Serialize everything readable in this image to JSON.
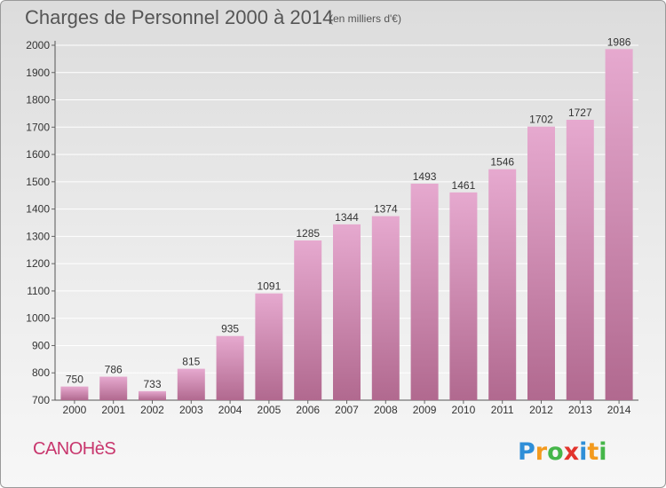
{
  "header": {
    "title": "Charges de Personnel 2000 à 2014",
    "subtitle": "(en milliers d'€)"
  },
  "footer": {
    "commune": "CANOHèS",
    "brand": "Proxiti"
  },
  "colors": {
    "bar_top": "#e6a9cf",
    "bar_bottom": "#b1698f",
    "commune_text": "#c8366d",
    "grid": "#ffffff"
  },
  "chart_data": {
    "type": "bar",
    "title": "Charges de Personnel 2000 à 2014",
    "subtitle": "(en milliers d'€)",
    "xlabel": "",
    "ylabel": "",
    "categories": [
      "2000",
      "2001",
      "2002",
      "2003",
      "2004",
      "2005",
      "2006",
      "2007",
      "2008",
      "2009",
      "2010",
      "2011",
      "2012",
      "2013",
      "2014"
    ],
    "values": [
      750,
      786,
      733,
      815,
      935,
      1091,
      1285,
      1344,
      1374,
      1493,
      1461,
      1546,
      1702,
      1727,
      1986
    ],
    "ylim": [
      700,
      2000
    ],
    "yticks": [
      700,
      800,
      900,
      1000,
      1100,
      1200,
      1300,
      1400,
      1500,
      1600,
      1700,
      1800,
      1900,
      2000
    ],
    "grid": true,
    "legend": "none"
  }
}
